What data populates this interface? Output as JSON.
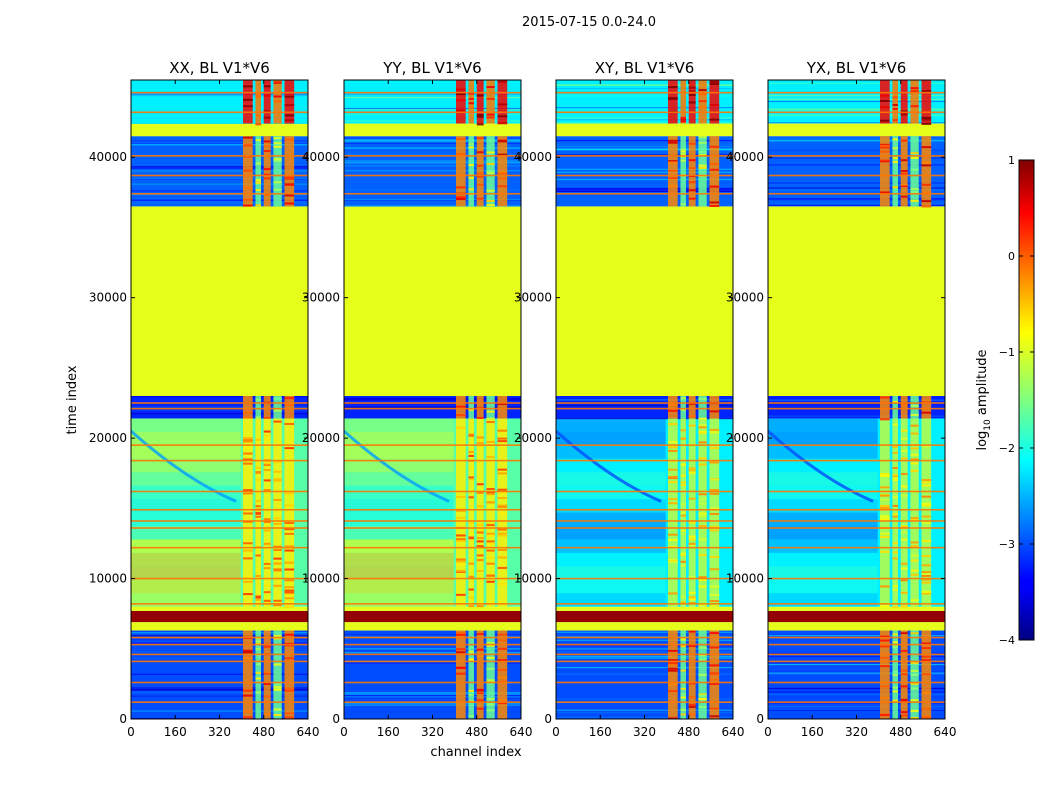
{
  "figure_title": "2015-07-15 0.0-24.0",
  "chart_data": {
    "type": "heatmap",
    "suptitle": "2015-07-15 0.0-24.0",
    "xlabel": "channel index",
    "ylabel": "time index",
    "xlim": [
      0,
      640
    ],
    "ylim": [
      0,
      45500
    ],
    "xticks": [
      0,
      160,
      320,
      480,
      640
    ],
    "yticks": [
      0,
      10000,
      20000,
      30000,
      40000
    ],
    "colorbar": {
      "label": "log10 amplitude",
      "label_prefix": "log",
      "label_sub": "10",
      "label_suffix": " amplitude",
      "range": [
        -4,
        1
      ],
      "ticks": [
        -4,
        -3,
        -2,
        -1,
        0,
        1
      ],
      "tick_labels": [
        "−4",
        "−3",
        "−2",
        "−1",
        "0",
        "1"
      ],
      "colormap": "jet"
    },
    "panels": [
      {
        "title": "XX, BL V1*V6",
        "polarization": "XX",
        "baseline": "V1*V6"
      },
      {
        "title": "YY, BL V1*V6",
        "polarization": "YY",
        "baseline": "V1*V6"
      },
      {
        "title": "XY, BL V1*V6",
        "polarization": "XY",
        "baseline": "V1*V6"
      },
      {
        "title": "YX, BL V1*V6",
        "polarization": "YX",
        "baseline": "V1*V6"
      }
    ],
    "bands": [
      {
        "t0": 0,
        "t1": 6300,
        "level": -3.0,
        "kind": "noise_blue"
      },
      {
        "t0": 6300,
        "t1": 6900,
        "level": -1.0,
        "kind": "flat"
      },
      {
        "t0": 6900,
        "t1": 7700,
        "level": 0.9,
        "kind": "flat"
      },
      {
        "t0": 7700,
        "t1": 8000,
        "level": -1.0,
        "kind": "flat"
      },
      {
        "t0": 8000,
        "t1": 21400,
        "level": -1.7,
        "kind": "signal"
      },
      {
        "t0": 21400,
        "t1": 23000,
        "level": -3.2,
        "kind": "noise_blue"
      },
      {
        "t0": 23000,
        "t1": 36500,
        "level": -1.0,
        "kind": "flat"
      },
      {
        "t0": 36500,
        "t1": 41500,
        "level": -2.9,
        "kind": "noise_blue"
      },
      {
        "t0": 41500,
        "t1": 42400,
        "level": -1.0,
        "kind": "flat"
      },
      {
        "t0": 42400,
        "t1": 45500,
        "level": -2.2,
        "kind": "noise_mixed"
      }
    ],
    "rfi_channel_ranges": [
      [
        405,
        440
      ],
      [
        450,
        470
      ],
      [
        480,
        505
      ],
      [
        515,
        545
      ],
      [
        555,
        590
      ]
    ],
    "flag_rows": [
      1200,
      2600,
      4100,
      4600,
      5300,
      5800,
      8200,
      10000,
      12200,
      13600,
      14100,
      14900,
      16200,
      18400,
      19500,
      22100,
      22500,
      37400,
      38700,
      40100,
      43200,
      44600
    ]
  }
}
